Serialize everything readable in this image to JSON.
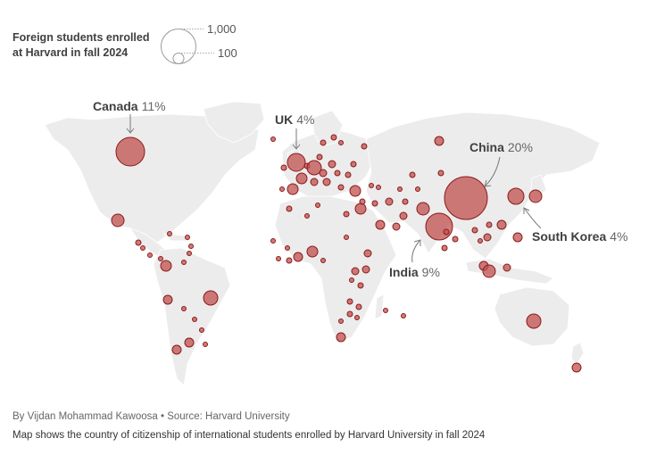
{
  "legend": {
    "title_line1": "Foreign students enrolled",
    "title_line2": "at Harvard in fall 2024",
    "large_value": "1,000",
    "small_value": "100"
  },
  "callouts": [
    {
      "country": "Canada",
      "share": "11%"
    },
    {
      "country": "UK",
      "share": "4%"
    },
    {
      "country": "China",
      "share": "20%"
    },
    {
      "country": "South Korea",
      "share": "4%"
    },
    {
      "country": "India",
      "share": "9%"
    }
  ],
  "colors": {
    "land": "#ececec",
    "border": "#ffffff",
    "bubble_fill": "#c0504d",
    "bubble_stroke": "#8b1a1a"
  },
  "footer": {
    "byline": "By Vijdan Mohammad Kawoosa • Source: Harvard University",
    "note": "Map shows the country of citizenship of international students enrolled by Harvard University in fall 2024"
  }
}
